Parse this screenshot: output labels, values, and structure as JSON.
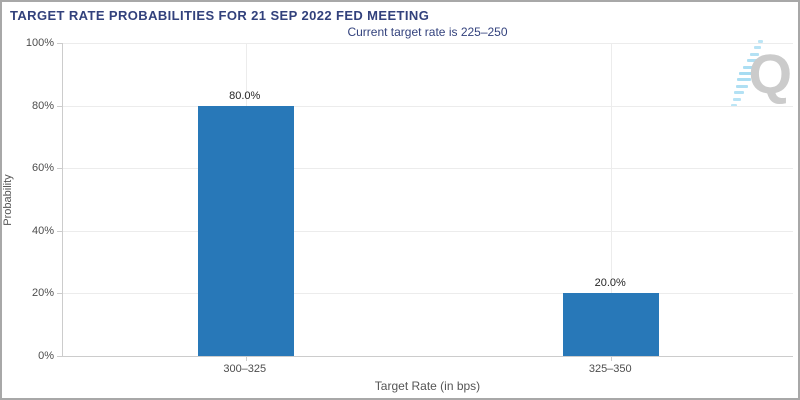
{
  "page": {
    "background": "#ffffff",
    "border_color": "#a8a8a8"
  },
  "chart_data": {
    "type": "bar",
    "title": "TARGET RATE PROBABILITIES FOR 21 SEP 2022 FED MEETING",
    "subtitle": "Current target rate is 225–250",
    "xlabel": "Target Rate (in bps)",
    "ylabel": "Probability",
    "categories": [
      "300–325",
      "325–350"
    ],
    "values": [
      80.0,
      20.0
    ],
    "value_labels": [
      "80.0%",
      "20.0%"
    ],
    "ylim": [
      0,
      100
    ],
    "yticks": [
      0,
      20,
      40,
      60,
      80,
      100
    ],
    "ytick_labels": [
      "0%",
      "20%",
      "40%",
      "60%",
      "80%",
      "100%"
    ],
    "grid": true,
    "legend": false,
    "bar_color": "#2878b8",
    "title_color": "#32417c",
    "subtitle_color": "#33427d",
    "axis_text_color": "#4d4d4d",
    "grid_color": "#ececec",
    "axis_line_color": "#cccccc",
    "value_label_color": "#262626"
  },
  "logo": {
    "letter": "Q",
    "q_color": "#cbcbcb",
    "dash_color": "#a6dcf2"
  }
}
